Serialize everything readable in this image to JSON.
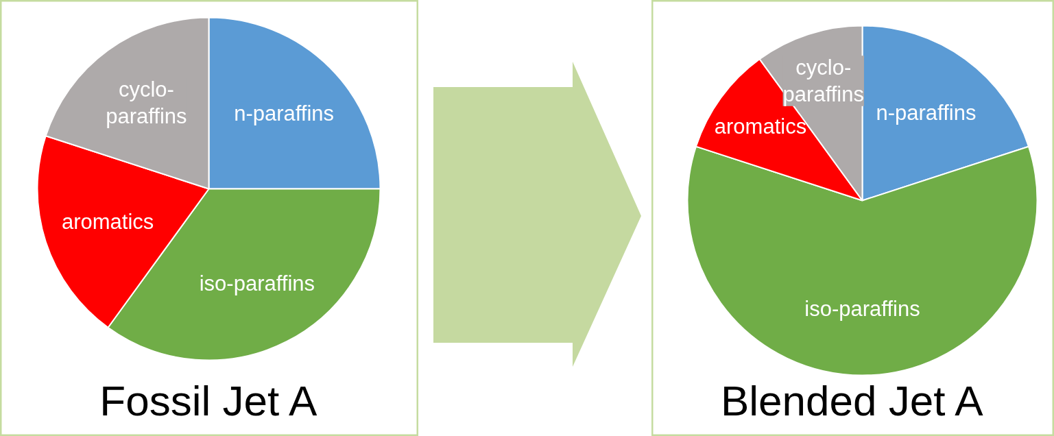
{
  "chart_data": [
    {
      "type": "pie",
      "title": "Fossil Jet A",
      "categories": [
        "n-paraffins",
        "iso-paraffins",
        "aromatics",
        "cyclo-\nparaffins"
      ],
      "values": [
        25,
        35,
        20,
        20
      ],
      "colors": [
        "#5b9bd5",
        "#70ad47",
        "#ff0000",
        "#aeaaaa"
      ]
    },
    {
      "type": "pie",
      "title": "Blended Jet A",
      "categories": [
        "n-paraffins",
        "iso-paraffins",
        "aromatics",
        "cyclo-\nparaffins"
      ],
      "values": [
        20,
        60,
        10,
        10
      ],
      "colors": [
        "#5b9bd5",
        "#70ad47",
        "#ff0000",
        "#aeaaaa"
      ]
    }
  ]
}
